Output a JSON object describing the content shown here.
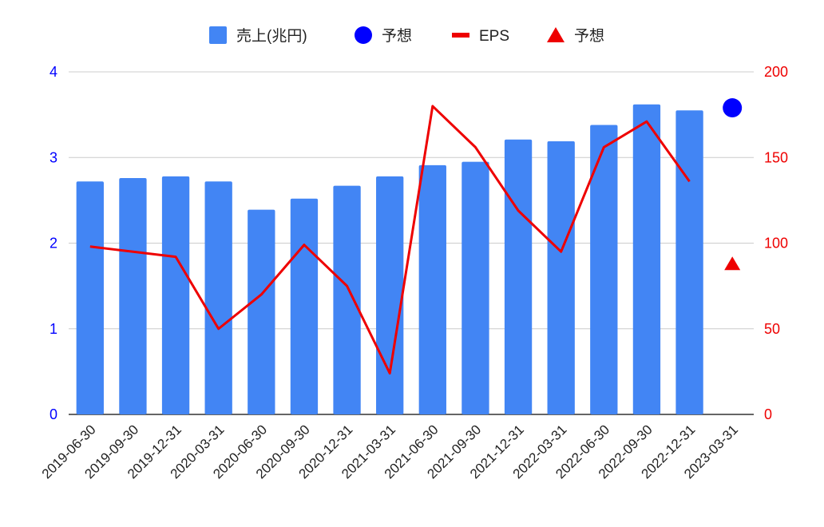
{
  "chart_data": {
    "type": "bar",
    "categories": [
      "2019-06-30",
      "2019-09-30",
      "2019-12-31",
      "2020-03-31",
      "2020-06-30",
      "2020-09-30",
      "2020-12-31",
      "2021-03-31",
      "2021-06-30",
      "2021-09-30",
      "2021-12-31",
      "2022-03-31",
      "2022-06-30",
      "2022-09-30",
      "2022-12-31",
      "2023-03-31"
    ],
    "series": [
      {
        "name": "売上(兆円)",
        "type": "bar",
        "axis": "left",
        "color": "#4285f4",
        "values": [
          2.72,
          2.76,
          2.78,
          2.72,
          2.39,
          2.52,
          2.67,
          2.78,
          2.91,
          2.95,
          3.21,
          3.19,
          3.38,
          3.62,
          3.55,
          null
        ]
      },
      {
        "name": "予想",
        "type": "scatter",
        "marker": "circle",
        "axis": "left",
        "color": "#0000ff",
        "values": [
          null,
          null,
          null,
          null,
          null,
          null,
          null,
          null,
          null,
          null,
          null,
          null,
          null,
          null,
          null,
          3.58
        ]
      },
      {
        "name": "EPS",
        "type": "line",
        "axis": "right",
        "color": "#ee0000",
        "values": [
          98,
          null,
          92,
          50,
          70,
          99,
          75,
          24,
          180,
          156,
          119,
          95,
          156,
          171,
          136,
          null
        ]
      },
      {
        "name": "予想",
        "type": "scatter",
        "marker": "triangle",
        "axis": "right",
        "color": "#ee0000",
        "values": [
          null,
          null,
          null,
          null,
          null,
          null,
          null,
          null,
          null,
          null,
          null,
          null,
          null,
          null,
          null,
          88
        ]
      }
    ],
    "y_left": {
      "min": 0,
      "max": 4,
      "ticks": [
        "0",
        "1",
        "2",
        "3",
        "4"
      ],
      "color": "#0000ff"
    },
    "y_right": {
      "min": 0,
      "max": 200,
      "ticks": [
        "0",
        "50",
        "100",
        "150",
        "200"
      ],
      "color": "#ee0000"
    },
    "grid": true,
    "legend_position": "top"
  }
}
